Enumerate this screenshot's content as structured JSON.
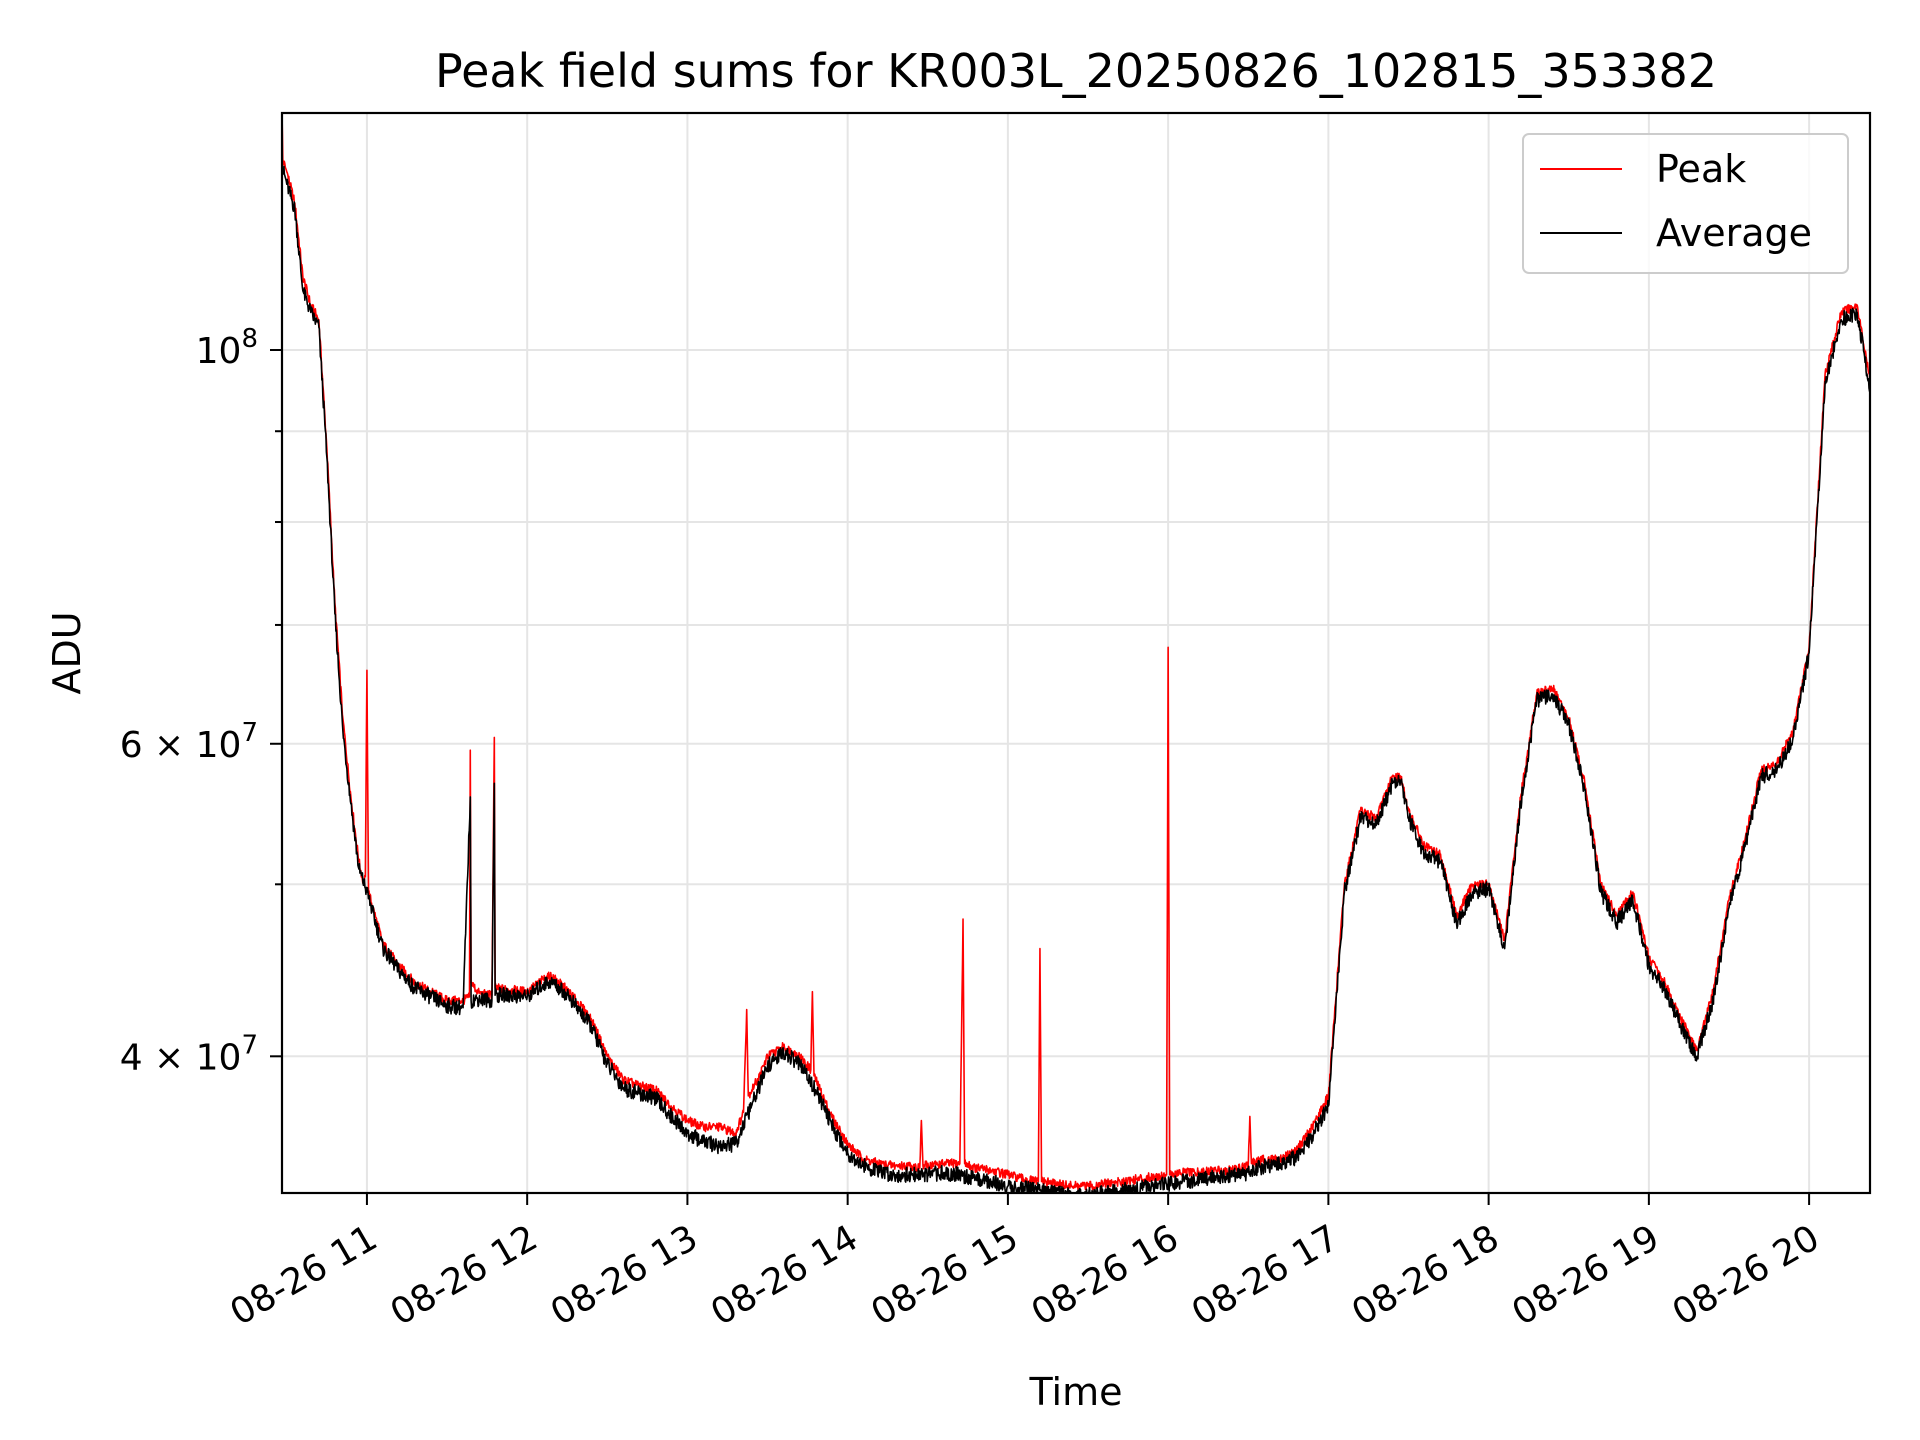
{
  "chart_data": {
    "type": "line",
    "title": "Peak field sums for KR003L_20250826_102815_353382",
    "xlabel": "Time",
    "ylabel": "ADU",
    "x_unit": "hours (clock time on 2025-08-26)",
    "xlim": [
      10.47,
      20.38
    ],
    "ylim": [
      33500000,
      136000000
    ],
    "yscale": "log",
    "grid": true,
    "legend_position": "top-right",
    "x_ticks": [
      {
        "value": 11,
        "label": "08-26 11"
      },
      {
        "value": 12,
        "label": "08-26 12"
      },
      {
        "value": 13,
        "label": "08-26 13"
      },
      {
        "value": 14,
        "label": "08-26 14"
      },
      {
        "value": 15,
        "label": "08-26 15"
      },
      {
        "value": 16,
        "label": "08-26 16"
      },
      {
        "value": 17,
        "label": "08-26 17"
      },
      {
        "value": 18,
        "label": "08-26 18"
      },
      {
        "value": 19,
        "label": "08-26 19"
      },
      {
        "value": 20,
        "label": "08-26 20"
      }
    ],
    "y_ticks": [
      {
        "value": 40000000,
        "base": "4 × 10",
        "exp": "7"
      },
      {
        "value": 60000000,
        "base": "6 × 10",
        "exp": "7"
      },
      {
        "value": 100000000,
        "base": "10",
        "exp": "8"
      }
    ],
    "y_minor_ticks": [
      50000000,
      70000000,
      80000000,
      90000000
    ],
    "series": [
      {
        "name": "Peak",
        "color": "#ff0000",
        "points": [
          [
            10.47,
            136000000
          ],
          [
            10.475,
            128000000
          ],
          [
            10.5,
            126000000
          ],
          [
            10.55,
            121000000
          ],
          [
            10.6,
            110000000
          ],
          [
            10.65,
            106000000
          ],
          [
            10.7,
            104000000
          ],
          [
            10.75,
            88000000
          ],
          [
            10.8,
            72000000
          ],
          [
            10.85,
            62000000
          ],
          [
            10.9,
            56000000
          ],
          [
            10.95,
            51500000
          ],
          [
            10.98,
            50000000
          ],
          [
            10.99,
            50500000
          ],
          [
            11.0,
            66000000
          ],
          [
            11.01,
            49500000
          ],
          [
            11.1,
            46300000
          ],
          [
            11.2,
            45000000
          ],
          [
            11.3,
            44000000
          ],
          [
            11.4,
            43500000
          ],
          [
            11.5,
            43000000
          ],
          [
            11.6,
            43000000
          ],
          [
            11.64,
            43200000
          ],
          [
            11.645,
            59500000
          ],
          [
            11.65,
            44000000
          ],
          [
            11.7,
            43400000
          ],
          [
            11.78,
            43300000
          ],
          [
            11.795,
            60500000
          ],
          [
            11.8,
            43700000
          ],
          [
            11.9,
            43600000
          ],
          [
            12.0,
            43500000
          ],
          [
            12.1,
            44200000
          ],
          [
            12.15,
            44400000
          ],
          [
            12.25,
            43600000
          ],
          [
            12.4,
            42000000
          ],
          [
            12.5,
            40000000
          ],
          [
            12.6,
            38800000
          ],
          [
            12.7,
            38500000
          ],
          [
            12.8,
            38300000
          ],
          [
            12.9,
            37500000
          ],
          [
            13.0,
            36800000
          ],
          [
            13.1,
            36500000
          ],
          [
            13.2,
            36500000
          ],
          [
            13.3,
            36200000
          ],
          [
            13.35,
            37200000
          ],
          [
            13.37,
            42500000
          ],
          [
            13.38,
            38000000
          ],
          [
            13.45,
            39000000
          ],
          [
            13.5,
            40000000
          ],
          [
            13.6,
            40500000
          ],
          [
            13.7,
            40000000
          ],
          [
            13.77,
            39300000
          ],
          [
            13.78,
            43500000
          ],
          [
            13.79,
            39000000
          ],
          [
            13.9,
            37000000
          ],
          [
            14.0,
            35700000
          ],
          [
            14.1,
            35000000
          ],
          [
            14.2,
            34800000
          ],
          [
            14.3,
            34700000
          ],
          [
            14.4,
            34700000
          ],
          [
            14.45,
            34600000
          ],
          [
            14.46,
            36800000
          ],
          [
            14.47,
            34700000
          ],
          [
            14.6,
            34800000
          ],
          [
            14.7,
            34800000
          ],
          [
            14.72,
            47800000
          ],
          [
            14.73,
            34800000
          ],
          [
            14.8,
            34600000
          ],
          [
            14.9,
            34500000
          ],
          [
            15.0,
            34300000
          ],
          [
            15.1,
            34100000
          ],
          [
            15.19,
            34000000
          ],
          [
            15.2,
            46000000
          ],
          [
            15.21,
            34000000
          ],
          [
            15.3,
            33900000
          ],
          [
            15.4,
            33800000
          ],
          [
            15.5,
            33800000
          ],
          [
            15.6,
            33900000
          ],
          [
            15.7,
            34000000
          ],
          [
            15.8,
            34100000
          ],
          [
            15.9,
            34200000
          ],
          [
            15.99,
            34300000
          ],
          [
            16.0,
            68000000
          ],
          [
            16.01,
            34300000
          ],
          [
            16.1,
            34400000
          ],
          [
            16.2,
            34400000
          ],
          [
            16.3,
            34500000
          ],
          [
            16.4,
            34500000
          ],
          [
            16.5,
            34700000
          ],
          [
            16.51,
            37000000
          ],
          [
            16.52,
            34800000
          ],
          [
            16.6,
            35000000
          ],
          [
            16.7,
            35000000
          ],
          [
            16.8,
            35400000
          ],
          [
            16.9,
            36500000
          ],
          [
            17.0,
            38000000
          ],
          [
            17.1,
            50000000
          ],
          [
            17.2,
            55000000
          ],
          [
            17.3,
            54500000
          ],
          [
            17.4,
            57500000
          ],
          [
            17.45,
            57500000
          ],
          [
            17.5,
            55000000
          ],
          [
            17.6,
            52500000
          ],
          [
            17.7,
            52000000
          ],
          [
            17.8,
            48000000
          ],
          [
            17.9,
            50000000
          ],
          [
            18.0,
            50000000
          ],
          [
            18.1,
            46500000
          ],
          [
            18.2,
            56000000
          ],
          [
            18.3,
            64000000
          ],
          [
            18.4,
            64500000
          ],
          [
            18.5,
            62000000
          ],
          [
            18.6,
            57000000
          ],
          [
            18.7,
            50000000
          ],
          [
            18.8,
            48000000
          ],
          [
            18.9,
            49500000
          ],
          [
            19.0,
            45500000
          ],
          [
            19.1,
            44000000
          ],
          [
            19.2,
            42000000
          ],
          [
            19.3,
            40300000
          ],
          [
            19.4,
            43500000
          ],
          [
            19.5,
            49000000
          ],
          [
            19.6,
            53000000
          ],
          [
            19.7,
            58000000
          ],
          [
            19.8,
            58500000
          ],
          [
            19.9,
            61000000
          ],
          [
            20.0,
            68000000
          ],
          [
            20.1,
            97000000
          ],
          [
            20.2,
            105000000
          ],
          [
            20.3,
            106000000
          ],
          [
            20.38,
            96000000
          ]
        ]
      },
      {
        "name": "Average",
        "color": "#000000",
        "points": [
          [
            10.47,
            127000000
          ],
          [
            10.5,
            124000000
          ],
          [
            10.55,
            120000000
          ],
          [
            10.6,
            108000000
          ],
          [
            10.65,
            105000000
          ],
          [
            10.7,
            103000000
          ],
          [
            10.75,
            87000000
          ],
          [
            10.8,
            71000000
          ],
          [
            10.85,
            61000000
          ],
          [
            10.9,
            55500000
          ],
          [
            10.95,
            51000000
          ],
          [
            11.0,
            49500000
          ],
          [
            11.1,
            46000000
          ],
          [
            11.2,
            44700000
          ],
          [
            11.3,
            43700000
          ],
          [
            11.4,
            43200000
          ],
          [
            11.5,
            42700000
          ],
          [
            11.6,
            42600000
          ],
          [
            11.645,
            56000000
          ],
          [
            11.65,
            43000000
          ],
          [
            11.7,
            43100000
          ],
          [
            11.78,
            43000000
          ],
          [
            11.795,
            57000000
          ],
          [
            11.8,
            43300000
          ],
          [
            11.9,
            43300000
          ],
          [
            12.0,
            43200000
          ],
          [
            12.1,
            43900000
          ],
          [
            12.15,
            44100000
          ],
          [
            12.25,
            43300000
          ],
          [
            12.4,
            41600000
          ],
          [
            12.5,
            39600000
          ],
          [
            12.6,
            38400000
          ],
          [
            12.7,
            38100000
          ],
          [
            12.8,
            37900000
          ],
          [
            12.9,
            37000000
          ],
          [
            13.0,
            36200000
          ],
          [
            13.1,
            35800000
          ],
          [
            13.2,
            35600000
          ],
          [
            13.3,
            35700000
          ],
          [
            13.4,
            37500000
          ],
          [
            13.5,
            39500000
          ],
          [
            13.6,
            40200000
          ],
          [
            13.7,
            39600000
          ],
          [
            13.8,
            38300000
          ],
          [
            13.9,
            36600000
          ],
          [
            14.0,
            35300000
          ],
          [
            14.1,
            34700000
          ],
          [
            14.2,
            34400000
          ],
          [
            14.3,
            34300000
          ],
          [
            14.4,
            34300000
          ],
          [
            14.5,
            34300000
          ],
          [
            14.6,
            34400000
          ],
          [
            14.7,
            34300000
          ],
          [
            14.8,
            34100000
          ],
          [
            14.9,
            34000000
          ],
          [
            15.0,
            33800000
          ],
          [
            15.1,
            33700000
          ],
          [
            15.2,
            33600000
          ],
          [
            15.3,
            33500000
          ],
          [
            15.4,
            33400000
          ],
          [
            15.5,
            33400000
          ],
          [
            15.6,
            33500000
          ],
          [
            15.7,
            33600000
          ],
          [
            15.8,
            33700000
          ],
          [
            15.9,
            33800000
          ],
          [
            16.0,
            33900000
          ],
          [
            16.1,
            34000000
          ],
          [
            16.2,
            34100000
          ],
          [
            16.3,
            34200000
          ],
          [
            16.4,
            34300000
          ],
          [
            16.5,
            34400000
          ],
          [
            16.6,
            34700000
          ],
          [
            16.7,
            34800000
          ],
          [
            16.8,
            35100000
          ],
          [
            16.9,
            36100000
          ],
          [
            17.0,
            37500000
          ],
          [
            17.1,
            49500000
          ],
          [
            17.2,
            54500000
          ],
          [
            17.3,
            54000000
          ],
          [
            17.4,
            57000000
          ],
          [
            17.45,
            57200000
          ],
          [
            17.5,
            54500000
          ],
          [
            17.6,
            52000000
          ],
          [
            17.7,
            51500000
          ],
          [
            17.8,
            47500000
          ],
          [
            17.9,
            49500000
          ],
          [
            18.0,
            49700000
          ],
          [
            18.1,
            46000000
          ],
          [
            18.2,
            55500000
          ],
          [
            18.3,
            63500000
          ],
          [
            18.4,
            64000000
          ],
          [
            18.5,
            61500000
          ],
          [
            18.6,
            56500000
          ],
          [
            18.7,
            49500000
          ],
          [
            18.8,
            47600000
          ],
          [
            18.9,
            49000000
          ],
          [
            19.0,
            45000000
          ],
          [
            19.1,
            43600000
          ],
          [
            19.2,
            41600000
          ],
          [
            19.3,
            40000000
          ],
          [
            19.4,
            43000000
          ],
          [
            19.5,
            48500000
          ],
          [
            19.6,
            52500000
          ],
          [
            19.7,
            57500000
          ],
          [
            19.8,
            58000000
          ],
          [
            19.9,
            60500000
          ],
          [
            20.0,
            67500000
          ],
          [
            20.1,
            96000000
          ],
          [
            20.2,
            104000000
          ],
          [
            20.3,
            105000000
          ],
          [
            20.38,
            95000000
          ]
        ]
      }
    ]
  }
}
